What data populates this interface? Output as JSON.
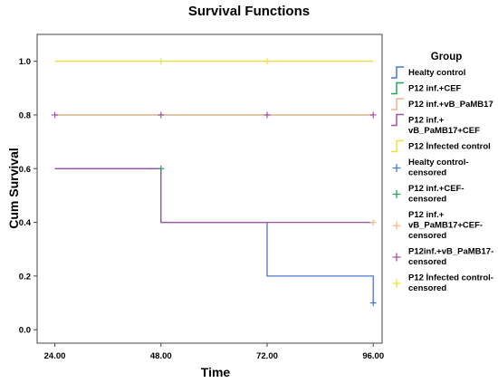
{
  "chart_data": {
    "type": "line",
    "title": "Survival Functions",
    "xlabel": "Time",
    "ylabel": "Cum Survival",
    "xlim": [
      20,
      98
    ],
    "ylim": [
      -0.05,
      1.1
    ],
    "x_ticks": [
      "24.00",
      "48.00",
      "72.00",
      "96.00"
    ],
    "y_ticks": [
      "0.0",
      "0.2",
      "0.4",
      "0.6",
      "0.8",
      "1.0"
    ],
    "grid": false,
    "legend_title": "Group",
    "legend_position": "right",
    "series": [
      {
        "name": "Healty control",
        "color": "#4a78c9",
        "x": [
          24,
          48,
          48,
          72,
          72,
          96,
          96
        ],
        "y": [
          0.6,
          0.6,
          0.4,
          0.4,
          0.2,
          0.2,
          0.1
        ]
      },
      {
        "name": "P12 inf.+CEF",
        "color": "#27a35a",
        "x": [
          24,
          96
        ],
        "y": [
          0.8,
          0.8
        ]
      },
      {
        "name": "P12 inf.+vB_PaMB17",
        "color": "#f2b48c",
        "x": [
          24,
          96
        ],
        "y": [
          0.8,
          0.8
        ]
      },
      {
        "name": "P12 inf.+\nvB_PaMB17+CEF",
        "color": "#a550a8",
        "x": [
          24,
          48,
          48,
          96
        ],
        "y": [
          0.6,
          0.6,
          0.4,
          0.4
        ]
      },
      {
        "name": "P12 İnfected control",
        "color": "#ece23e",
        "x": [
          24,
          96
        ],
        "y": [
          1.0,
          1.0
        ]
      }
    ],
    "censored": [
      {
        "name": "Healty control-\ncensored",
        "color": "#4a78c9",
        "points": [
          [
            96,
            0.1
          ]
        ]
      },
      {
        "name": "P12 inf.+CEF-\ncensored",
        "color": "#27a35a",
        "points": [
          [
            48,
            0.6
          ]
        ]
      },
      {
        "name": "P12 inf.+\nvB_PaMB17+CEF-\ncensored",
        "color": "#f4ba8c",
        "points": [
          [
            96,
            0.4
          ]
        ]
      },
      {
        "name": "P12inf.+vB_PaMB17-\ncensored",
        "color": "#a550a8",
        "points": [
          [
            24,
            0.8
          ],
          [
            48,
            0.8
          ],
          [
            72,
            0.8
          ],
          [
            96,
            0.8
          ]
        ]
      },
      {
        "name": "P12 İnfected control-\ncensored",
        "color": "#ece23e",
        "points": [
          [
            48,
            1.0
          ],
          [
            72,
            1.0
          ]
        ]
      }
    ]
  }
}
